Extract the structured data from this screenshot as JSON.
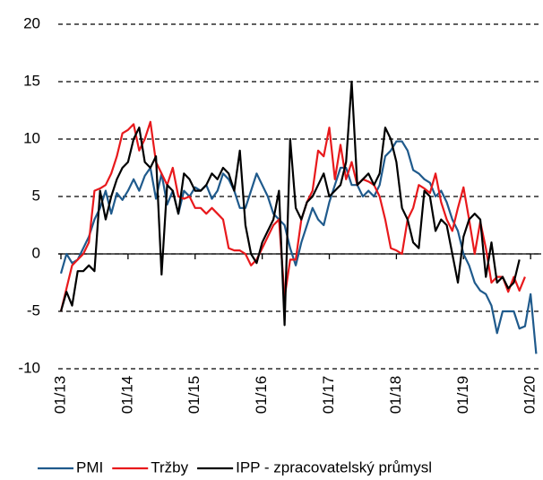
{
  "chart_data": {
    "type": "line",
    "categories": [
      "01/13",
      null,
      null,
      null,
      null,
      null,
      null,
      null,
      null,
      null,
      null,
      null,
      "01/14",
      null,
      null,
      null,
      null,
      null,
      null,
      null,
      null,
      null,
      null,
      null,
      "01/15",
      null,
      null,
      null,
      null,
      null,
      null,
      null,
      null,
      null,
      null,
      null,
      "01/16",
      null,
      null,
      null,
      null,
      null,
      null,
      null,
      null,
      null,
      null,
      null,
      "01/17",
      null,
      null,
      null,
      null,
      null,
      null,
      null,
      null,
      null,
      null,
      null,
      "01/18",
      null,
      null,
      null,
      null,
      null,
      null,
      null,
      null,
      null,
      null,
      null,
      "01/19",
      null,
      null,
      null,
      null,
      null,
      null,
      null,
      null,
      null,
      null,
      null,
      "01/20",
      null
    ],
    "series": [
      {
        "name": "PMI",
        "color": "#1f5a8c",
        "values": [
          -1.7,
          0,
          -0.8,
          -0.5,
          0.5,
          1.5,
          3,
          4,
          5.5,
          3.5,
          5.3,
          4.7,
          5.5,
          6.5,
          5.5,
          6.8,
          7.5,
          4.8,
          7,
          4.3,
          5.5,
          3.5,
          5.5,
          5,
          5.8,
          5.5,
          6,
          4.8,
          5.5,
          7,
          6.5,
          5.5,
          4,
          4,
          5.5,
          7,
          6,
          5,
          3.5,
          3,
          2.5,
          0.5,
          -1,
          1,
          2.5,
          4,
          3,
          2.5,
          4.5,
          6,
          7.5,
          7.5,
          6,
          6,
          5,
          5.5,
          5,
          6,
          8.5,
          9,
          9.8,
          9.8,
          9,
          7.3,
          7,
          6.5,
          6.2,
          5,
          5.5,
          4.5,
          3,
          2,
          0,
          -1,
          -2.5,
          -3.2,
          -3.5,
          -4.5,
          -6.9,
          -5,
          -5,
          -5,
          -6.5,
          -6.3,
          -3.5,
          -8.7
        ]
      },
      {
        "name": "Tržby",
        "color": "#e8191c",
        "values": [
          -5,
          -3,
          -1,
          -0.5,
          0,
          1,
          5.5,
          5.7,
          6,
          7,
          8.5,
          10.5,
          10.8,
          11.3,
          9,
          10,
          11.5,
          8,
          7,
          6,
          7.5,
          5,
          4.8,
          5,
          4,
          4,
          3.5,
          4,
          3.5,
          3,
          0.5,
          0.3,
          0.3,
          0,
          -1,
          -0.5,
          0.5,
          1.5,
          2.5,
          3,
          -3.8,
          -0.5,
          -0.5,
          3,
          4.5,
          5.5,
          9,
          8.5,
          11,
          6.5,
          9.5,
          6.5,
          8,
          6,
          6.5,
          6.3,
          6,
          5,
          3,
          0.5,
          0.3,
          0,
          3,
          4,
          6,
          5.7,
          5.3,
          7,
          4.5,
          3,
          2,
          4,
          5.8,
          3,
          0,
          2.8,
          0.5,
          -2.5,
          -2,
          -2,
          -3.3,
          -2,
          -3.2,
          -2,
          null,
          null
        ]
      },
      {
        "name": "IPP - zpracovatelský průmysl",
        "color": "#000000",
        "values": [
          -5,
          -3.3,
          -4.5,
          -1.5,
          -1.5,
          -1,
          -1.5,
          5.5,
          3,
          5,
          6.5,
          7.5,
          8,
          10,
          11,
          8,
          7.5,
          8.5,
          -1.8,
          6,
          5.5,
          3.5,
          7,
          6.5,
          5.5,
          5.5,
          6,
          7,
          6.5,
          7.5,
          7,
          5.5,
          9,
          2.5,
          0,
          -0.8,
          1,
          2,
          3,
          5.5,
          -6.2,
          10,
          4,
          3,
          4.5,
          5,
          6,
          7,
          5,
          5.5,
          6,
          8,
          15,
          6,
          6.5,
          7,
          6,
          7,
          11,
          10,
          8,
          4,
          3,
          1,
          0.5,
          5.5,
          5,
          2,
          3,
          2.5,
          0,
          -2.5,
          1.5,
          3,
          3.5,
          3,
          -2,
          1,
          -2.5,
          -2,
          -3,
          -2.5,
          -0.5,
          null,
          null,
          null
        ]
      }
    ],
    "ylim": [
      -10,
      20
    ],
    "yticks": [
      -10,
      -5,
      0,
      5,
      10,
      15,
      20
    ],
    "grid": true,
    "legend": "bottom"
  }
}
